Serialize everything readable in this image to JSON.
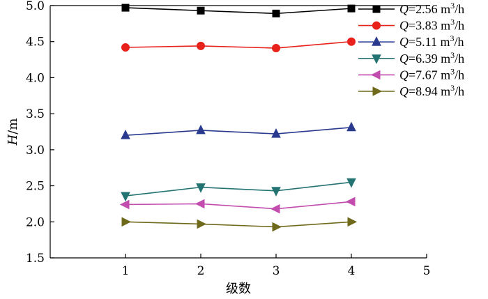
{
  "chart_data": {
    "type": "line",
    "xlabel": "级数",
    "ylabel": "H/m",
    "ylabel_italic": "H",
    "ylabel_unit": "/m",
    "xlim": [
      0,
      5
    ],
    "ylim": [
      1.5,
      5.0
    ],
    "x_ticks": [
      "1",
      "2",
      "3",
      "4",
      "5"
    ],
    "y_ticks": [
      "1.5",
      "2.0",
      "2.5",
      "3.0",
      "3.5",
      "4.0",
      "4.5",
      "5.0"
    ],
    "grid": false,
    "legend_position": "top-right",
    "x": [
      1,
      2,
      3,
      4
    ],
    "series": [
      {
        "name": "Q=2.56 m³/h",
        "symbol": "Q",
        "value_text": "=2.56 m",
        "sup": "3",
        "unit_tail": "/h",
        "color": "#000000",
        "marker": "square",
        "values": [
          4.97,
          4.93,
          4.89,
          4.96
        ]
      },
      {
        "name": "Q=3.83 m³/h",
        "symbol": "Q",
        "value_text": "=3.83 m",
        "sup": "3",
        "unit_tail": "/h",
        "color": "#e8211b",
        "marker": "circle",
        "values": [
          4.42,
          4.44,
          4.41,
          4.5
        ]
      },
      {
        "name": "Q=5.11 m³/h",
        "symbol": "Q",
        "value_text": "=5.11 m",
        "sup": "3",
        "unit_tail": "/h",
        "color": "#2a3a8e",
        "marker": "triangle-up",
        "values": [
          3.2,
          3.27,
          3.22,
          3.31
        ]
      },
      {
        "name": "Q=6.39 m³/h",
        "symbol": "Q",
        "value_text": "=6.39 m",
        "sup": "3",
        "unit_tail": "/h",
        "color": "#237372",
        "marker": "triangle-down",
        "values": [
          2.36,
          2.48,
          2.43,
          2.55
        ]
      },
      {
        "name": "Q=7.67 m³/h",
        "symbol": "Q",
        "value_text": "=7.67 m",
        "sup": "3",
        "unit_tail": "/h",
        "color": "#c24dae",
        "marker": "triangle-left",
        "values": [
          2.24,
          2.25,
          2.18,
          2.28
        ]
      },
      {
        "name": "Q=8.94 m³/h",
        "symbol": "Q",
        "value_text": "=8.94 m",
        "sup": "3",
        "unit_tail": "/h",
        "color": "#6f6a1b",
        "marker": "triangle-right",
        "values": [
          2.0,
          1.97,
          1.93,
          2.0
        ]
      }
    ]
  }
}
